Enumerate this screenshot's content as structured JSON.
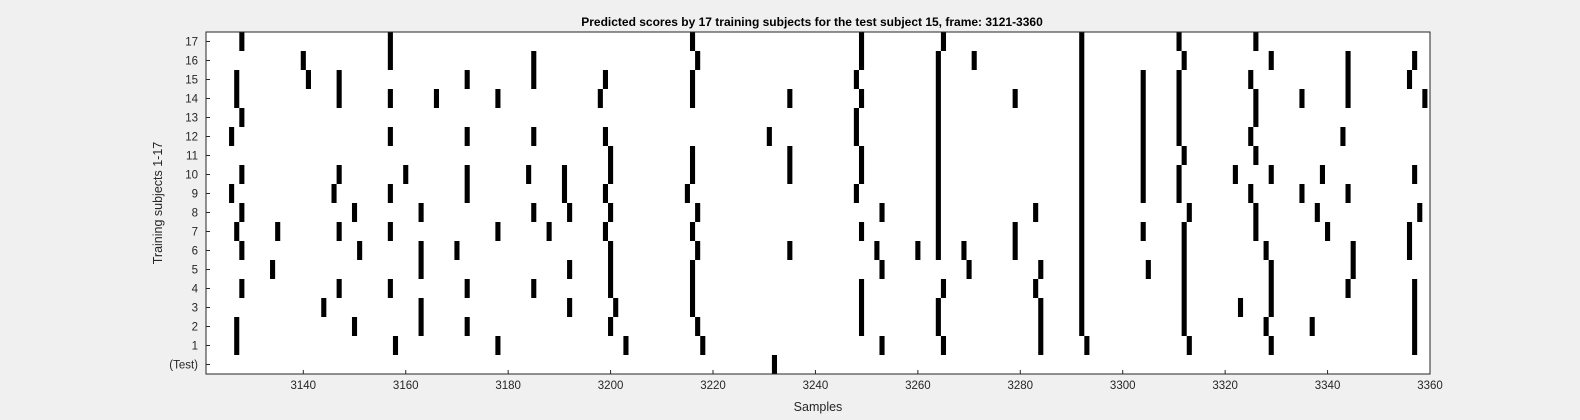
{
  "chart_data": {
    "type": "scatter",
    "title": "Predicted scores by 17 training subjects for the test subject 15, frame: 3121-3360",
    "xlabel": "Samples",
    "ylabel": "Training subjects 1-17",
    "xlim": [
      3121,
      3360
    ],
    "x_ticks": [
      3140,
      3160,
      3180,
      3200,
      3220,
      3240,
      3260,
      3280,
      3300,
      3320,
      3340,
      3360
    ],
    "y_ticks": [
      "(Test)",
      "1",
      "2",
      "3",
      "4",
      "5",
      "6",
      "7",
      "8",
      "9",
      "10",
      "11",
      "12",
      "13",
      "14",
      "15",
      "16",
      "17"
    ],
    "grid": false,
    "mark_color": "#000000",
    "rows": [
      {
        "row": "(Test)",
        "x": [
          3232
        ]
      },
      {
        "row": "1",
        "x": [
          3127,
          3158,
          3178,
          3203,
          3218,
          3253,
          3265,
          3284,
          3293,
          3313,
          3329,
          3357
        ]
      },
      {
        "row": "2",
        "x": [
          3127,
          3150,
          3163,
          3172,
          3200,
          3217,
          3249,
          3264,
          3284,
          3292,
          3312,
          3328,
          3337,
          3357
        ]
      },
      {
        "row": "3",
        "x": [
          3144,
          3163,
          3192,
          3201,
          3216,
          3249,
          3264,
          3284,
          3292,
          3312,
          3323,
          3329,
          3357
        ]
      },
      {
        "row": "4",
        "x": [
          3128,
          3147,
          3157,
          3172,
          3185,
          3200,
          3216,
          3249,
          3265,
          3283,
          3292,
          3312,
          3329,
          3344,
          3357
        ]
      },
      {
        "row": "5",
        "x": [
          3134,
          3163,
          3192,
          3200,
          3216,
          3253,
          3270,
          3284,
          3292,
          3305,
          3312,
          3329,
          3345
        ]
      },
      {
        "row": "6",
        "x": [
          3128,
          3151,
          3163,
          3170,
          3200,
          3217,
          3235,
          3252,
          3260,
          3264,
          3269,
          3279,
          3292,
          3312,
          3328,
          3345,
          3356
        ]
      },
      {
        "row": "7",
        "x": [
          3127,
          3135,
          3147,
          3157,
          3178,
          3188,
          3199,
          3216,
          3249,
          3264,
          3279,
          3292,
          3304,
          3312,
          3326,
          3340,
          3356
        ]
      },
      {
        "row": "8",
        "x": [
          3128,
          3150,
          3163,
          3185,
          3192,
          3200,
          3217,
          3253,
          3264,
          3283,
          3292,
          3313,
          3326,
          3338,
          3358
        ]
      },
      {
        "row": "9",
        "x": [
          3126,
          3146,
          3157,
          3172,
          3191,
          3199,
          3215,
          3248,
          3264,
          3292,
          3304,
          3311,
          3325,
          3335,
          3344
        ]
      },
      {
        "row": "10",
        "x": [
          3128,
          3147,
          3160,
          3172,
          3184,
          3191,
          3200,
          3216,
          3235,
          3249,
          3264,
          3292,
          3304,
          3311,
          3322,
          3329,
          3339,
          3357
        ]
      },
      {
        "row": "11",
        "x": [
          3200,
          3216,
          3235,
          3249,
          3264,
          3292,
          3304,
          3312,
          3326
        ]
      },
      {
        "row": "12",
        "x": [
          3126,
          3157,
          3172,
          3185,
          3199,
          3231,
          3248,
          3264,
          3292,
          3304,
          3311,
          3325,
          3343
        ]
      },
      {
        "row": "13",
        "x": [
          3128,
          3248,
          3264,
          3292,
          3304,
          3311,
          3326
        ]
      },
      {
        "row": "14",
        "x": [
          3127,
          3147,
          3157,
          3166,
          3178,
          3198,
          3216,
          3235,
          3249,
          3264,
          3279,
          3292,
          3304,
          3311,
          3326,
          3335,
          3344,
          3359
        ]
      },
      {
        "row": "15",
        "x": [
          3127,
          3141,
          3147,
          3172,
          3185,
          3199,
          3216,
          3248,
          3264,
          3292,
          3304,
          3311,
          3325,
          3344,
          3356
        ]
      },
      {
        "row": "16",
        "x": [
          3140,
          3157,
          3185,
          3217,
          3249,
          3264,
          3271,
          3292,
          3312,
          3329,
          3344,
          3357
        ]
      },
      {
        "row": "17",
        "x": [
          3128,
          3157,
          3216,
          3249,
          3265,
          3292,
          3311,
          3326
        ]
      }
    ]
  }
}
